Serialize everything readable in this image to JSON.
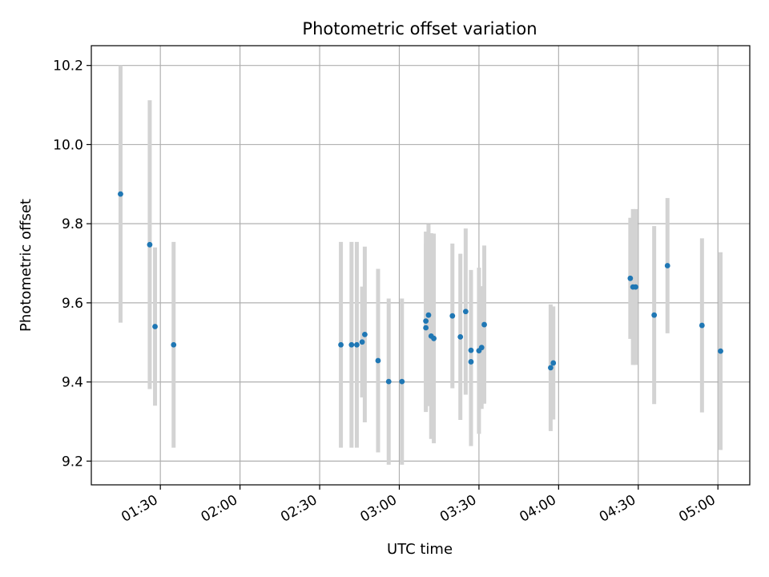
{
  "chart_data": {
    "type": "scatter",
    "title": "Photometric offset variation",
    "xlabel": "UTC time",
    "ylabel": "Photometric offset",
    "x_ticks": [
      "01:30",
      "02:00",
      "02:30",
      "03:00",
      "03:30",
      "04:00",
      "04:30",
      "05:00"
    ],
    "x_tick_minutes": [
      90,
      120,
      150,
      180,
      210,
      240,
      270,
      300
    ],
    "y_ticks": [
      "9.2",
      "9.4",
      "9.6",
      "9.8",
      "10.0",
      "10.2"
    ],
    "y_tick_values": [
      9.2,
      9.4,
      9.6,
      9.8,
      10.0,
      10.2
    ],
    "xlim": [
      "01:04",
      "05:12"
    ],
    "ylim": [
      9.14,
      10.25
    ],
    "grid": true,
    "marker_color": "#1f77b4",
    "errorbar_color": "#d3d3d3",
    "points": [
      {
        "t": "01:15",
        "y": 9.875,
        "err": 0.325
      },
      {
        "t": "01:26",
        "y": 9.747,
        "err": 0.365
      },
      {
        "t": "01:28",
        "y": 9.54,
        "err": 0.2
      },
      {
        "t": "01:35",
        "y": 9.494,
        "err": 0.26
      },
      {
        "t": "02:38",
        "y": 9.494,
        "err": 0.26
      },
      {
        "t": "02:42",
        "y": 9.494,
        "err": 0.26
      },
      {
        "t": "02:44",
        "y": 9.494,
        "err": 0.26
      },
      {
        "t": "02:46",
        "y": 9.501,
        "err": 0.14
      },
      {
        "t": "02:47",
        "y": 9.52,
        "err": 0.222
      },
      {
        "t": "02:52",
        "y": 9.454,
        "err": 0.232
      },
      {
        "t": "02:56",
        "y": 9.401,
        "err": 0.21
      },
      {
        "t": "03:01",
        "y": 9.401,
        "err": 0.21
      },
      {
        "t": "03:10",
        "y": 9.537,
        "err": 0.213
      },
      {
        "t": "03:10",
        "y": 9.554,
        "err": 0.226
      },
      {
        "t": "03:11",
        "y": 9.569,
        "err": 0.23
      },
      {
        "t": "03:12",
        "y": 9.516,
        "err": 0.26
      },
      {
        "t": "03:13",
        "y": 9.51,
        "err": 0.265
      },
      {
        "t": "03:20",
        "y": 9.567,
        "err": 0.183
      },
      {
        "t": "03:23",
        "y": 9.514,
        "err": 0.21
      },
      {
        "t": "03:25",
        "y": 9.578,
        "err": 0.21
      },
      {
        "t": "03:27",
        "y": 9.48,
        "err": 0.203
      },
      {
        "t": "03:27",
        "y": 9.451,
        "err": 0.213
      },
      {
        "t": "03:30",
        "y": 9.479,
        "err": 0.21
      },
      {
        "t": "03:31",
        "y": 9.487,
        "err": 0.155
      },
      {
        "t": "03:32",
        "y": 9.545,
        "err": 0.2
      },
      {
        "t": "03:57",
        "y": 9.436,
        "err": 0.16
      },
      {
        "t": "03:58",
        "y": 9.448,
        "err": 0.143
      },
      {
        "t": "04:27",
        "y": 9.662,
        "err": 0.153
      },
      {
        "t": "04:28",
        "y": 9.64,
        "err": 0.197
      },
      {
        "t": "04:29",
        "y": 9.64,
        "err": 0.197
      },
      {
        "t": "04:36",
        "y": 9.569,
        "err": 0.225
      },
      {
        "t": "04:41",
        "y": 9.694,
        "err": 0.171
      },
      {
        "t": "04:54",
        "y": 9.543,
        "err": 0.22
      },
      {
        "t": "05:01",
        "y": 9.478,
        "err": 0.25
      }
    ]
  }
}
